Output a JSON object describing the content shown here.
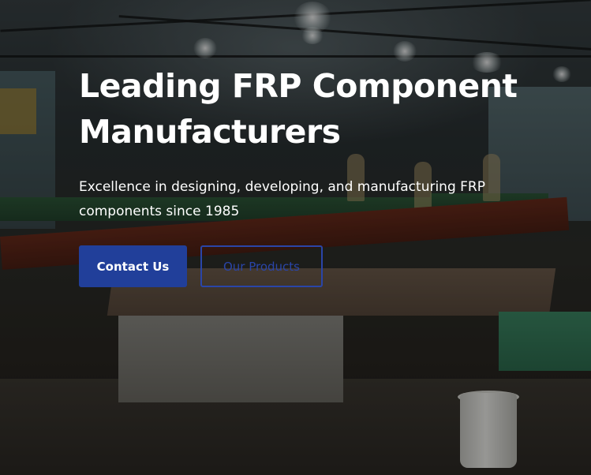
{
  "hero": {
    "title_line1": "Leading FRP Component",
    "title_line2": "Manufacturers",
    "subtitle_line1": "Excellence in designing, developing, and manufacturing FRP",
    "subtitle_line2": "components since 1985",
    "buttons": {
      "contact_label": "Contact Us",
      "products_label": "Our Products"
    }
  },
  "colors": {
    "primary": "#213f9a",
    "outline": "#2a45a8",
    "text": "#ffffff"
  }
}
